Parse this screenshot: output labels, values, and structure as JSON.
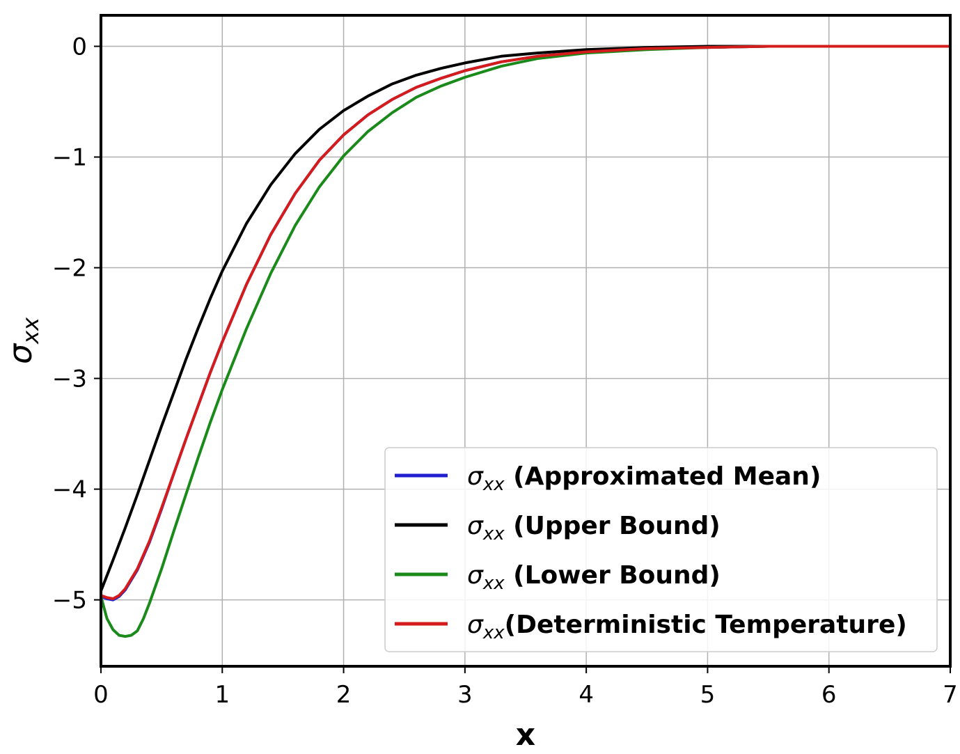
{
  "chart_data": {
    "type": "line",
    "xlabel": "x",
    "ylabel": {
      "symbol": "σ",
      "subscript": "xx"
    },
    "xlim": [
      0,
      7
    ],
    "ylim": [
      -5.6,
      0.28
    ],
    "xticks": [
      0,
      1,
      2,
      3,
      4,
      5,
      6,
      7
    ],
    "xtick_labels": [
      "0",
      "1",
      "2",
      "3",
      "4",
      "5",
      "6",
      "7"
    ],
    "yticks": [
      0,
      -1,
      -2,
      -3,
      -4,
      -5
    ],
    "ytick_labels": [
      "0",
      "−1",
      "−2",
      "−3",
      "−4",
      "−5"
    ],
    "grid": true,
    "legend_position": "lower-right",
    "series": [
      {
        "name": "(Approximated Mean)",
        "legend_prefix": "σ",
        "legend_sub": "xx",
        "gap": true,
        "color": "#1f1fd0",
        "x": [
          0,
          0.05,
          0.1,
          0.15,
          0.2,
          0.3,
          0.4,
          0.5,
          0.6,
          0.7,
          0.8,
          0.9,
          1.0,
          1.2,
          1.4,
          1.6,
          1.8,
          2.0,
          2.2,
          2.4,
          2.6,
          2.8,
          3.0,
          3.3,
          3.6,
          4.0,
          4.5,
          5.0,
          5.5,
          6.0,
          7.0
        ],
        "y": [
          -4.97,
          -4.99,
          -5.0,
          -4.97,
          -4.91,
          -4.73,
          -4.48,
          -4.18,
          -3.86,
          -3.55,
          -3.25,
          -2.95,
          -2.67,
          -2.15,
          -1.7,
          -1.33,
          -1.03,
          -0.8,
          -0.62,
          -0.48,
          -0.37,
          -0.29,
          -0.22,
          -0.14,
          -0.09,
          -0.05,
          -0.02,
          -0.01,
          0.0,
          0.0,
          0.0
        ]
      },
      {
        "name": "(Upper Bound)",
        "legend_prefix": "σ",
        "legend_sub": "xx",
        "gap": true,
        "color": "#000000",
        "x": [
          0,
          0.1,
          0.2,
          0.3,
          0.4,
          0.5,
          0.6,
          0.7,
          0.8,
          0.9,
          1.0,
          1.2,
          1.4,
          1.6,
          1.8,
          2.0,
          2.2,
          2.4,
          2.6,
          2.8,
          3.0,
          3.3,
          3.6,
          4.0,
          4.5,
          5.0,
          5.5,
          6.0,
          7.0
        ],
        "y": [
          -4.92,
          -4.64,
          -4.35,
          -4.05,
          -3.74,
          -3.43,
          -3.13,
          -2.83,
          -2.55,
          -2.28,
          -2.03,
          -1.6,
          -1.25,
          -0.97,
          -0.75,
          -0.58,
          -0.45,
          -0.34,
          -0.26,
          -0.2,
          -0.15,
          -0.09,
          -0.06,
          -0.03,
          -0.01,
          0.0,
          0.0,
          0.0,
          0.0
        ]
      },
      {
        "name": "(Lower Bound)",
        "legend_prefix": "σ",
        "legend_sub": "xx",
        "gap": true,
        "color": "#1a8a1a",
        "x": [
          0,
          0.05,
          0.1,
          0.15,
          0.2,
          0.25,
          0.3,
          0.35,
          0.4,
          0.5,
          0.6,
          0.7,
          0.8,
          0.9,
          1.0,
          1.2,
          1.4,
          1.6,
          1.8,
          2.0,
          2.2,
          2.4,
          2.6,
          2.8,
          3.0,
          3.3,
          3.6,
          4.0,
          4.5,
          5.0,
          5.5,
          6.0,
          7.0
        ],
        "y": [
          -4.97,
          -5.17,
          -5.27,
          -5.32,
          -5.33,
          -5.32,
          -5.28,
          -5.17,
          -5.03,
          -4.72,
          -4.38,
          -4.05,
          -3.72,
          -3.4,
          -3.1,
          -2.55,
          -2.05,
          -1.62,
          -1.27,
          -0.99,
          -0.77,
          -0.6,
          -0.46,
          -0.36,
          -0.28,
          -0.18,
          -0.11,
          -0.06,
          -0.03,
          -0.01,
          0.0,
          0.0,
          0.0
        ]
      },
      {
        "name": "(Deterministic Temperature)",
        "legend_prefix": "σ",
        "legend_sub": "xx",
        "gap": false,
        "color": "#d41c1c",
        "x": [
          0,
          0.05,
          0.1,
          0.15,
          0.2,
          0.3,
          0.4,
          0.5,
          0.6,
          0.7,
          0.8,
          0.9,
          1.0,
          1.2,
          1.4,
          1.6,
          1.8,
          2.0,
          2.2,
          2.4,
          2.6,
          2.8,
          3.0,
          3.3,
          3.6,
          4.0,
          4.5,
          5.0,
          5.5,
          6.0,
          7.0
        ],
        "y": [
          -4.96,
          -4.98,
          -4.99,
          -4.96,
          -4.9,
          -4.72,
          -4.47,
          -4.17,
          -3.86,
          -3.55,
          -3.25,
          -2.95,
          -2.67,
          -2.15,
          -1.7,
          -1.33,
          -1.03,
          -0.8,
          -0.62,
          -0.48,
          -0.37,
          -0.29,
          -0.22,
          -0.14,
          -0.09,
          -0.05,
          -0.02,
          -0.01,
          0.0,
          0.0,
          0.0
        ]
      }
    ]
  }
}
